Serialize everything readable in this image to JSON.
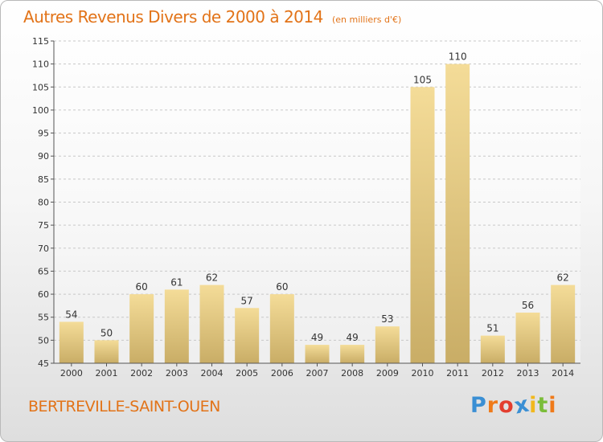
{
  "header": {
    "title": "Autres Revenus Divers de 2000 à 2014",
    "subtitle": "(en milliers d'€)"
  },
  "footer": {
    "commune": "BERTREVILLE-SAINT-OUEN",
    "logo": {
      "letters": [
        "P",
        "r",
        "o",
        "x",
        "i",
        "t",
        "i"
      ],
      "colors": [
        "#3a8fd4",
        "#ef7a1a",
        "#e33e2f",
        "#3a8fd4",
        "#f1b81d",
        "#7bbd3a",
        "#ef7a1a"
      ]
    }
  },
  "colors": {
    "title": "#e27318",
    "bar_light": "#f4dc98",
    "bar_dark": "#c9ad66",
    "grid": "#c8c8c8",
    "axis": "#555555"
  },
  "chart_data": {
    "type": "bar",
    "categories": [
      "2000",
      "2001",
      "2002",
      "2003",
      "2004",
      "2005",
      "2006",
      "2007",
      "2008",
      "2009",
      "2010",
      "2011",
      "2012",
      "2013",
      "2014"
    ],
    "values": [
      54,
      50,
      60,
      61,
      62,
      57,
      60,
      49,
      49,
      53,
      105,
      110,
      51,
      56,
      62
    ],
    "data_labels": [
      "54",
      "50",
      "60",
      "61",
      "62",
      "57",
      "60",
      "49",
      "49",
      "53",
      "105",
      "110",
      "51",
      "56",
      "62"
    ],
    "title": "Autres Revenus Divers de 2000 à 2014",
    "xlabel": "",
    "ylabel": "",
    "ylim": [
      45,
      115
    ],
    "yticks": [
      45,
      50,
      55,
      60,
      65,
      70,
      75,
      80,
      85,
      90,
      95,
      100,
      105,
      110,
      115
    ],
    "ytick_labels": [
      "45",
      "50",
      "55",
      "60",
      "65",
      "70",
      "75",
      "80",
      "85",
      "90",
      "95",
      "100",
      "105",
      "110",
      "115"
    ],
    "grid": true,
    "legend": "none"
  }
}
